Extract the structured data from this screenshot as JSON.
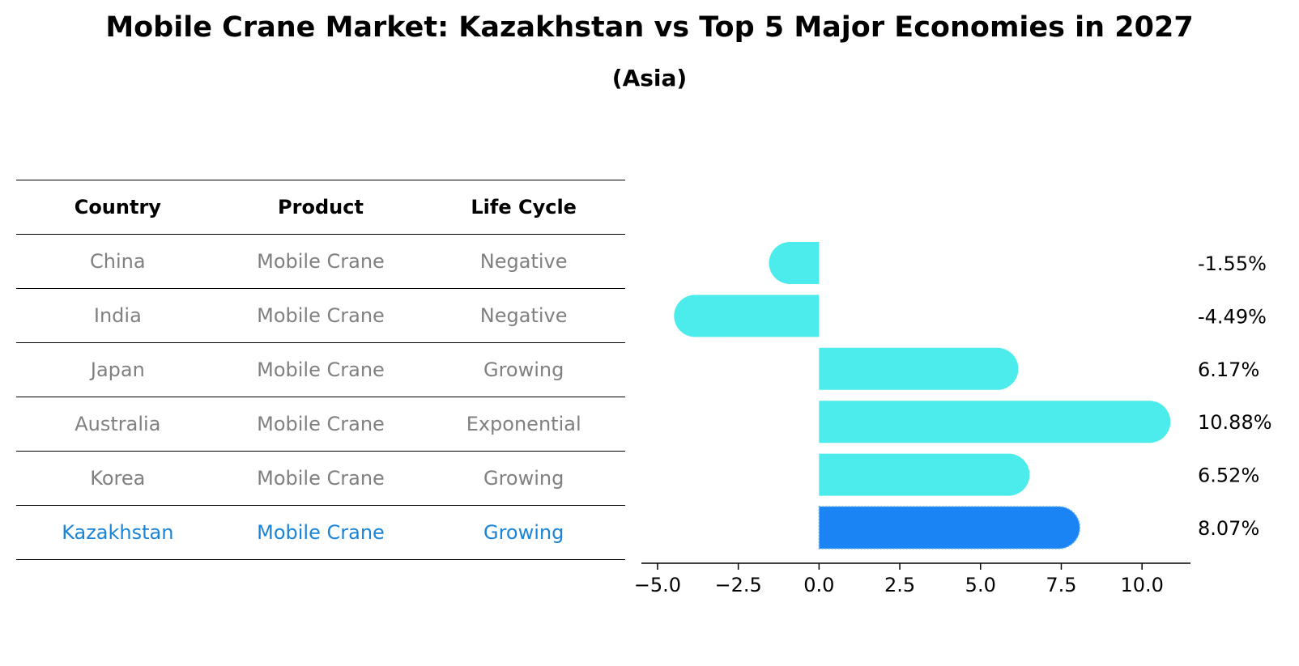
{
  "title": "Mobile Crane Market: Kazakhstan vs Top 5 Major Economies in 2027",
  "subtitle": "(Asia)",
  "table": {
    "headers": [
      "Country",
      "Product",
      "Life Cycle"
    ],
    "rows": [
      [
        "China",
        "Mobile Crane",
        "Negative"
      ],
      [
        "India",
        "Mobile Crane",
        "Negative"
      ],
      [
        "Japan",
        "Mobile Crane",
        "Growing"
      ],
      [
        "Australia",
        "Mobile Crane",
        "Exponential"
      ],
      [
        "Korea",
        "Mobile Crane",
        "Growing"
      ],
      [
        "Kazakhstan",
        "Mobile Crane",
        "Growing"
      ]
    ],
    "highlight_row": 5
  },
  "chart_data": {
    "type": "bar",
    "orientation": "horizontal",
    "categories": [
      "China",
      "India",
      "Japan",
      "Australia",
      "Korea",
      "Kazakhstan"
    ],
    "values": [
      -1.55,
      -4.49,
      6.17,
      10.88,
      6.52,
      8.07
    ],
    "value_labels": [
      "-1.55%",
      "-4.49%",
      "6.17%",
      "10.88%",
      "6.52%",
      "8.07%"
    ],
    "xlim": [
      -5.5,
      11.5
    ],
    "xticks": [
      -5.0,
      -2.5,
      0.0,
      2.5,
      5.0,
      7.5,
      10.0
    ],
    "xtick_labels": [
      "−5.0",
      "−2.5",
      "0.0",
      "2.5",
      "5.0",
      "7.5",
      "10.0"
    ],
    "grid": false,
    "colors": {
      "default": "#4beceb",
      "highlight": "#1a84f4"
    },
    "highlight_index": 5
  }
}
